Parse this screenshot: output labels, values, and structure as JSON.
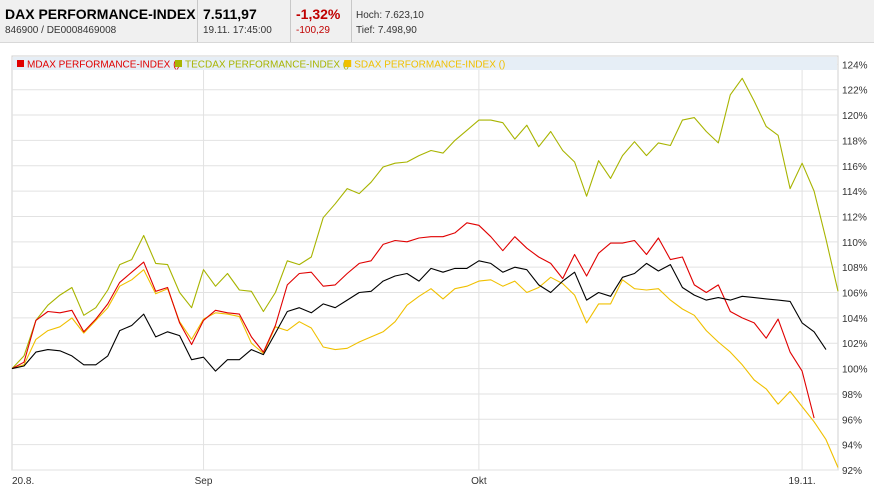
{
  "header": {
    "title": "DAX PERFORMANCE-INDEX",
    "ids": "846900  /  DE0008469008",
    "price": "7.511,97",
    "datetime": "19.11. 17:45:00",
    "change_pct": "-1,32%",
    "change_abs": "-100,29",
    "high": "Hoch: 7.623,10",
    "low": "Tief: 7.498,90"
  },
  "colors": {
    "mdax": "#e00000",
    "tecdax": "#a8b400",
    "sdax": "#f0c000",
    "dax": "#000000",
    "legend_bg": "#e6eef6"
  },
  "chart_data": {
    "type": "line",
    "xlabel": "",
    "ylabel": "",
    "ylim": [
      92,
      125
    ],
    "yticks": [
      "124%",
      "122%",
      "120%",
      "118%",
      "116%",
      "114%",
      "112%",
      "110%",
      "108%",
      "106%",
      "104%",
      "102%",
      "100%",
      "98%",
      "96%",
      "94%",
      "92%"
    ],
    "xticks": [
      {
        "label": "20.8.",
        "index": 0
      },
      {
        "label": "Sep",
        "index": 16
      },
      {
        "label": "Okt",
        "index": 39
      },
      {
        "label": "19.11.",
        "index": 66
      }
    ],
    "grid": true,
    "legend_position": "top-left",
    "series": [
      {
        "name": "MDAX PERFORMANCE-INDEX ()",
        "color_key": "mdax",
        "values": [
          100.0,
          100.5,
          103.8,
          104.5,
          104.4,
          104.6,
          102.9,
          103.9,
          105.1,
          106.8,
          107.6,
          108.4,
          106.1,
          106.4,
          103.6,
          101.9,
          103.8,
          104.6,
          104.4,
          104.3,
          102.5,
          101.3,
          103.4,
          106.6,
          107.5,
          107.6,
          106.5,
          106.6,
          107.5,
          108.3,
          108.5,
          109.8,
          110.1,
          110.0,
          110.3,
          110.4,
          110.4,
          110.7,
          111.5,
          111.3,
          110.4,
          109.3,
          110.4,
          109.5,
          108.8,
          108.3,
          107.1,
          109.0,
          107.3,
          109.1,
          109.9,
          109.9,
          110.1,
          109.0,
          110.3,
          108.6,
          108.8,
          106.6,
          106.0,
          106.6,
          104.5,
          104.0,
          103.6,
          102.4,
          103.9,
          101.3,
          99.8,
          96.1
        ]
      },
      {
        "name": "TECDAX PERFORMANCE-INDEX ()",
        "color_key": "tecdax",
        "values": [
          100.0,
          101.0,
          103.8,
          105.0,
          105.8,
          106.4,
          104.2,
          104.8,
          106.2,
          108.2,
          108.6,
          110.5,
          108.3,
          108.2,
          106.0,
          104.8,
          107.8,
          106.5,
          107.5,
          106.2,
          106.1,
          104.5,
          106.0,
          108.5,
          108.2,
          108.8,
          111.9,
          113.0,
          114.2,
          113.8,
          114.7,
          115.9,
          116.2,
          116.3,
          116.8,
          117.2,
          117.0,
          118.0,
          118.8,
          119.6,
          119.6,
          119.4,
          118.1,
          119.2,
          117.5,
          118.7,
          117.2,
          116.3,
          113.6,
          116.4,
          115.0,
          116.8,
          117.9,
          116.8,
          117.8,
          117.6,
          119.6,
          119.8,
          118.7,
          117.8,
          121.6,
          122.9,
          121.1,
          119.1,
          118.4,
          114.2,
          116.2,
          114.0,
          110.2,
          106.1
        ]
      },
      {
        "name": "SDAX PERFORMANCE-INDEX ()",
        "color_key": "sdax",
        "values": [
          100.0,
          100.3,
          102.3,
          103.0,
          103.3,
          104.0,
          102.8,
          103.8,
          104.8,
          106.5,
          107.0,
          107.8,
          105.9,
          106.3,
          103.7,
          102.3,
          103.9,
          104.4,
          104.3,
          104.1,
          102.0,
          101.2,
          103.3,
          103.0,
          103.7,
          103.2,
          101.7,
          101.5,
          101.6,
          102.1,
          102.5,
          102.9,
          103.7,
          105.0,
          105.7,
          106.3,
          105.5,
          106.3,
          106.5,
          106.9,
          107.0,
          106.5,
          106.9,
          106.0,
          106.4,
          107.2,
          106.7,
          105.8,
          103.6,
          105.1,
          105.1,
          107.0,
          106.3,
          106.2,
          106.3,
          105.4,
          104.7,
          104.2,
          103.0,
          102.1,
          101.3,
          100.3,
          99.1,
          98.4,
          97.2,
          98.2,
          97.0,
          95.8,
          94.4,
          92.2
        ]
      },
      {
        "name": "DAX PERFORMANCE-INDEX",
        "color_key": "dax",
        "values": [
          100.0,
          100.2,
          101.3,
          101.5,
          101.4,
          101.0,
          100.3,
          100.3,
          101.0,
          103.0,
          103.4,
          104.3,
          102.5,
          102.9,
          102.6,
          100.7,
          100.9,
          99.8,
          100.7,
          100.7,
          101.5,
          101.1,
          102.8,
          104.5,
          104.8,
          104.4,
          105.1,
          104.8,
          105.4,
          106.0,
          106.1,
          106.9,
          107.3,
          107.5,
          106.9,
          107.9,
          107.6,
          107.9,
          107.9,
          108.5,
          108.3,
          107.6,
          108.0,
          107.8,
          106.6,
          106.0,
          106.9,
          107.6,
          105.4,
          106.0,
          105.7,
          107.2,
          107.5,
          108.3,
          107.7,
          108.2,
          106.4,
          105.8,
          105.4,
          105.6,
          105.4,
          105.7,
          105.6,
          105.5,
          105.4,
          105.3,
          103.6,
          102.9,
          101.5
        ]
      }
    ]
  }
}
